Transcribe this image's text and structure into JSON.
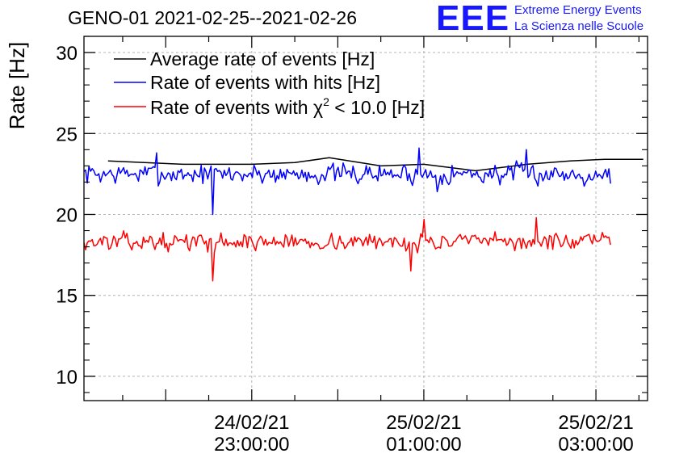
{
  "chart_data": {
    "type": "line",
    "title": "GENO-01 2021-02-25--2021-02-26",
    "ylabel": "Rate [Hz]",
    "xlabel": "",
    "ylim": [
      8.5,
      31
    ],
    "y_ticks": [
      10,
      15,
      20,
      25,
      30
    ],
    "x_time_range_hours": [
      -2.95,
      3.6
    ],
    "x_ticks": [
      {
        "hour": -1,
        "date": "24/02/21",
        "time": "23:00:00"
      },
      {
        "hour": 1,
        "date": "25/02/21",
        "time": "01:00:00"
      },
      {
        "hour": 3,
        "date": "25/02/21",
        "time": "03:00:00"
      }
    ],
    "grid": true,
    "legend_position": "top-left",
    "series": [
      {
        "name": "Average rate of events [Hz]",
        "color": "#000000",
        "x": [
          -2.67,
          -1.8,
          -1.0,
          -0.5,
          -0.1,
          0.5,
          1.0,
          1.6,
          2.2,
          2.7,
          3.1,
          3.55
        ],
        "y": [
          23.3,
          23.1,
          23.1,
          23.2,
          23.5,
          23.0,
          23.1,
          22.7,
          23.1,
          23.3,
          23.4,
          23.4
        ]
      },
      {
        "name": "Rate of events with hits [Hz]",
        "color": "#0000ff",
        "x_start": -2.95,
        "x_end": 3.17,
        "points": 320,
        "mean": 22.5,
        "noise": 0.55,
        "seed": 7,
        "extremes": [
          {
            "x": -2.1,
            "y": 23.8
          },
          {
            "x": -1.45,
            "y": 20.0
          },
          {
            "x": 0.95,
            "y": 24.1
          },
          {
            "x": 1.15,
            "y": 21.4
          },
          {
            "x": 2.2,
            "y": 24.0
          }
        ]
      },
      {
        "name": "Rate of events with χ² < 10.0 [Hz]",
        "color": "#ff0000",
        "x_start": -2.95,
        "x_end": 3.17,
        "points": 320,
        "mean": 18.3,
        "noise": 0.45,
        "seed": 13,
        "extremes": [
          {
            "x": -1.45,
            "y": 15.9
          },
          {
            "x": 1.0,
            "y": 19.7
          },
          {
            "x": 0.85,
            "y": 16.5
          },
          {
            "x": 2.3,
            "y": 19.8
          }
        ]
      }
    ]
  },
  "legend": {
    "avg_label": "Average rate of events [Hz]",
    "hits_label": "Rate of events with hits [Hz]",
    "chi_prefix": "Rate of events with ",
    "chi_symbol": "χ",
    "chi_exp": "2",
    "chi_suffix": " < 10.0 [Hz]"
  },
  "logo": {
    "mark": "EEE",
    "line1": "Extreme Energy Events",
    "line2": "La Scienza nelle Scuole"
  }
}
